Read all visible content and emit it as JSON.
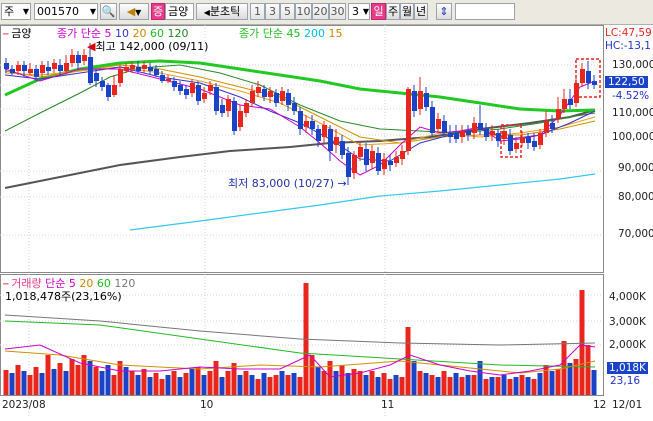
{
  "toolbar": {
    "mode": "주",
    "code": "001570",
    "stock_badge": "증",
    "stock_name": "금양",
    "minute_tick": "분초틱",
    "periods": [
      "1",
      "3",
      "5",
      "10",
      "20",
      "30"
    ],
    "period_value": "3",
    "day": "일",
    "week": "주",
    "month": "월",
    "year": "년"
  },
  "price_panel": {
    "stock_label": "금양",
    "legend_sma_label": "종가 단순",
    "legend_sma_periods": [
      "5",
      "10",
      "20",
      "60",
      "120"
    ],
    "legend_sma_colors": [
      "#cc00cc",
      "#3333cc",
      "#cc8800",
      "#22bb22",
      "#228822"
    ],
    "legend_long_label": "종가 단순 45",
    "legend_long_periods": [
      "200",
      "15"
    ],
    "legend_long_colors": [
      "#00bbee",
      "#cc8800"
    ],
    "high_note": "최고 142,000 (09/11)",
    "low_note": "최저 83,000 (10/27)",
    "lc": "LC:47,59",
    "hc": "HC:-13,1",
    "current_price": "122,50",
    "change_pct": "-4.52%",
    "y_ticks": [
      "130,000",
      "120,000",
      "110,000",
      "100,000",
      "90,000",
      "80,000",
      "70,000"
    ]
  },
  "volume_panel": {
    "title": "거래량",
    "ma_label": "단순",
    "ma_periods": [
      "5",
      "20",
      "60",
      "120"
    ],
    "ma_colors": [
      "#cc00cc",
      "#cc8800",
      "#22bb22",
      "#888888"
    ],
    "value": "1,018,478주(23,16%)",
    "y_ticks": [
      "4,000K",
      "3,000K",
      "2,000K"
    ],
    "current_badge": "1,018K",
    "current_pct": "23,16"
  },
  "x_axis": {
    "labels": [
      "2023/08",
      "10",
      "11",
      "12",
      "12/01"
    ]
  },
  "colors": {
    "up": "#e8261e",
    "down": "#1a43c8",
    "accent": "#e83b8a"
  }
}
